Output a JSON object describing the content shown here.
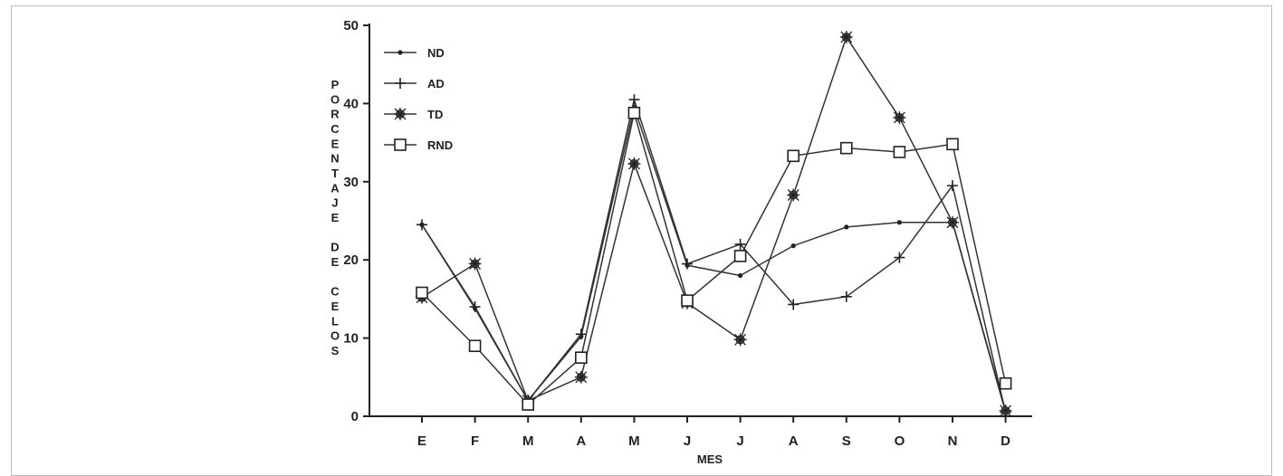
{
  "chart_data": {
    "type": "line",
    "title": "",
    "xlabel": "MES",
    "ylabel": "PORCENTAJE DE CELOS",
    "categories": [
      "E",
      "F",
      "M",
      "A",
      "M",
      "J",
      "J",
      "A",
      "S",
      "O",
      "N",
      "D"
    ],
    "ylim": [
      0,
      50
    ],
    "yticks": [
      0,
      10,
      20,
      30,
      40,
      50
    ],
    "grid": false,
    "legend_position": "top-left",
    "series": [
      {
        "name": "ND",
        "marker": "dot",
        "values": [
          24.5,
          13.8,
          2.0,
          10.2,
          39.5,
          19.3,
          18.0,
          21.8,
          24.2,
          24.8,
          24.8,
          0.5
        ]
      },
      {
        "name": "AD",
        "marker": "plus",
        "values": [
          24.5,
          14.0,
          2.0,
          10.5,
          40.5,
          19.5,
          22.0,
          14.3,
          15.3,
          20.3,
          29.5,
          0.5
        ]
      },
      {
        "name": "TD",
        "marker": "asterisk",
        "values": [
          15.2,
          19.5,
          2.0,
          5.0,
          32.3,
          14.5,
          9.8,
          28.3,
          48.5,
          38.2,
          24.8,
          0.7
        ]
      },
      {
        "name": "RND",
        "marker": "square",
        "values": [
          15.8,
          9.0,
          1.5,
          7.5,
          38.8,
          14.8,
          20.5,
          33.3,
          34.3,
          33.8,
          34.8,
          4.2
        ]
      }
    ]
  }
}
